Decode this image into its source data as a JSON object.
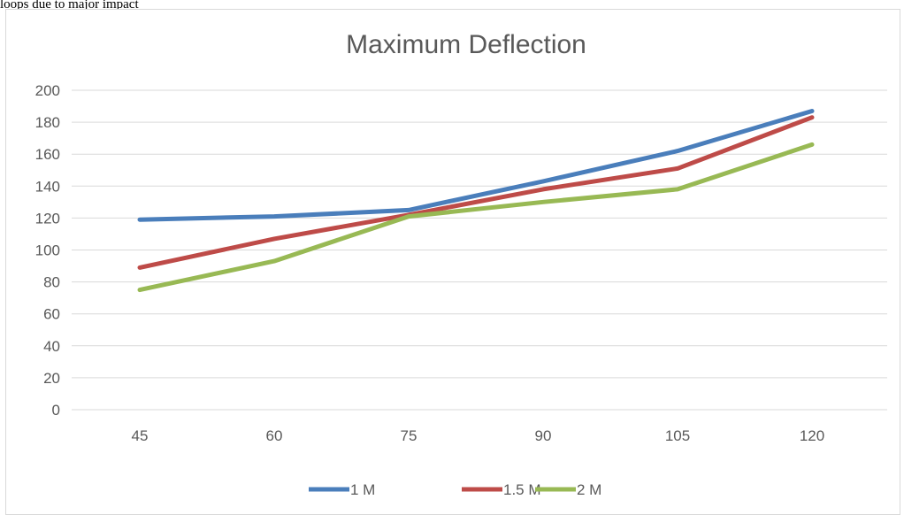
{
  "caption": "loops due to major impact",
  "chart_data": {
    "type": "line",
    "title": "Maximum Deflection",
    "xlabel": "",
    "ylabel": "",
    "categories": [
      "45",
      "60",
      "75",
      "90",
      "105",
      "120"
    ],
    "ylim": [
      0,
      200
    ],
    "yticks": [
      0,
      20,
      40,
      60,
      80,
      100,
      120,
      140,
      160,
      180,
      200
    ],
    "grid": true,
    "legend_position": "bottom",
    "series": [
      {
        "name": "1 M",
        "color": "#4a7ebb",
        "values": [
          119,
          121,
          125,
          143,
          162,
          187
        ]
      },
      {
        "name": "1.5 M",
        "color": "#be4b48",
        "values": [
          89,
          107,
          122,
          138,
          151,
          183
        ]
      },
      {
        "name": "2 M",
        "color": "#98b954",
        "values": [
          75,
          93,
          121,
          130,
          138,
          166
        ]
      }
    ]
  }
}
